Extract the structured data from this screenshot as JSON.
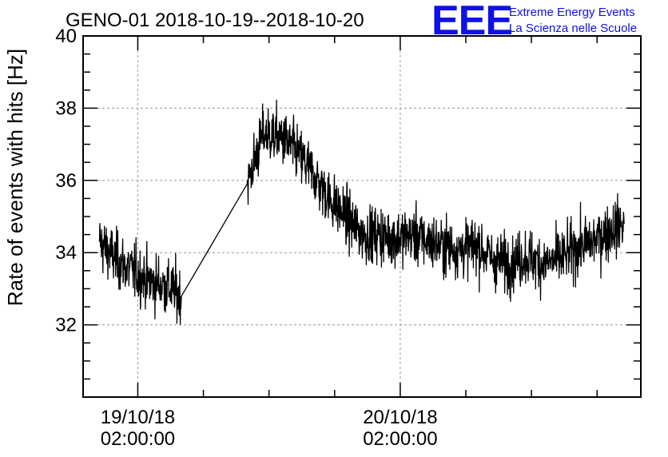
{
  "chart_data": {
    "type": "line",
    "title": "GENO-01 2018-10-19--2018-10-20",
    "xlabel": "",
    "ylabel": "Rate of events with hits [Hz]",
    "ylim": [
      30,
      40
    ],
    "xlim": [
      "2018-10-18 21:00",
      "2018-10-21 00:00"
    ],
    "y_ticks": [
      32,
      34,
      36,
      38,
      40
    ],
    "x_ticks": [
      {
        "x": "2018-10-19 02:00",
        "date": "19/10/18",
        "time": "02:00:00"
      },
      {
        "x": "2018-10-20 02:00",
        "date": "20/10/18",
        "time": "02:00:00"
      }
    ],
    "grid": true,
    "line_color": "#000000",
    "series": [
      {
        "x": [
          "2018-10-18 22:30",
          "2018-10-19 00:00",
          "2018-10-19 01:30",
          "2018-10-19 03:00",
          "2018-10-19 04:30",
          "2018-10-19 06:00",
          "2018-10-19 12:00",
          "2018-10-19 13:30",
          "2018-10-19 15:00",
          "2018-10-19 16:30",
          "2018-10-19 18:00",
          "2018-10-19 19:30",
          "2018-10-19 21:00",
          "2018-10-19 22:30",
          "2018-10-20 00:00",
          "2018-10-20 01:30",
          "2018-10-20 03:00",
          "2018-10-20 04:30",
          "2018-10-20 06:00",
          "2018-10-20 07:30",
          "2018-10-20 09:00",
          "2018-10-20 10:30",
          "2018-10-20 12:00",
          "2018-10-20 13:30",
          "2018-10-20 15:00",
          "2018-10-20 16:30",
          "2018-10-20 18:00",
          "2018-10-20 19:30",
          "2018-10-20 21:00",
          "2018-10-20 22:30"
        ],
        "values": [
          34.3,
          33.8,
          33.5,
          33.2,
          33.1,
          32.8,
          35.9,
          37.3,
          37.2,
          36.8,
          36.2,
          35.5,
          35.0,
          34.5,
          34.5,
          34.4,
          34.5,
          34.3,
          34.2,
          34.1,
          34.2,
          33.8,
          33.7,
          33.9,
          33.7,
          33.8,
          34.1,
          34.3,
          34.6,
          34.8
        ],
        "noise": 1.0
      }
    ]
  },
  "logo": {
    "mark": "EEE",
    "line1": "Extreme Energy Events",
    "line2": "La Scienza nelle Scuole"
  }
}
